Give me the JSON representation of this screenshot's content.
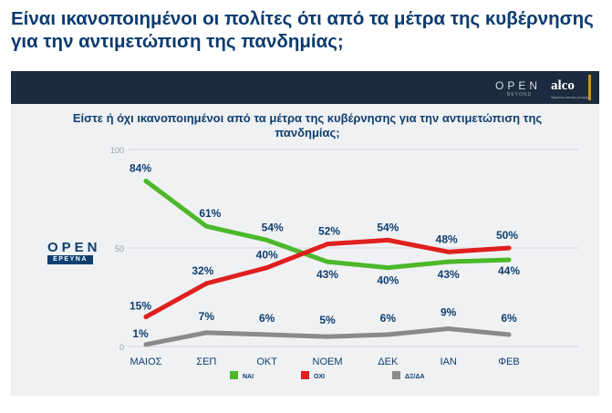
{
  "page": {
    "headline": "Είναι ικανοποιημένοι οι πολίτες ότι από τα μέτρα της κυβέρνησης για την αντιμετώπιση της πανδημίας;"
  },
  "branding": {
    "open_logo": "OPEN",
    "open_sub": "BEYOND",
    "alco_logo": "alco",
    "alco_sub": "Έρευνες κοινής γνώμης",
    "side_logo": "OPEN",
    "side_sub": "ΕΡΕΥΝΑ",
    "colors": {
      "topbar": "#1d2b3e",
      "accent": "#c8941e",
      "brand_blue": "#0e3f70"
    }
  },
  "chart_data": {
    "type": "line",
    "title": "Είστε ή όχι ικανοποιημένοι από τα μέτρα της κυβέρνησης για την αντιμετώπιση της πανδημίας;",
    "categories": [
      "ΜΑΙΟΣ",
      "ΣΕΠ",
      "ΟΚΤ",
      "ΝΟΕΜ",
      "ΔΕΚ",
      "ΙΑΝ",
      "ΦΕΒ"
    ],
    "yticks": [
      0,
      50,
      100
    ],
    "ylim": [
      0,
      100
    ],
    "grid": true,
    "legend_position": "bottom",
    "series": [
      {
        "name": "ΝΑΙ",
        "color": "#4cb82a",
        "values": [
          84,
          61,
          54,
          43,
          40,
          43,
          44
        ],
        "labels": [
          "84%",
          "61%",
          "54%",
          "43%",
          "40%",
          "43%",
          "44%"
        ]
      },
      {
        "name": "ΟΧΙ",
        "color": "#e01f1f",
        "values": [
          15,
          32,
          40,
          52,
          54,
          48,
          50
        ],
        "labels": [
          "15%",
          "32%",
          "40%",
          "52%",
          "54%",
          "48%",
          "50%"
        ]
      },
      {
        "name": "ΔΞ/ΔΑ",
        "color": "#8a8a8a",
        "values": [
          1,
          7,
          6,
          5,
          6,
          9,
          6
        ],
        "labels": [
          "1%",
          "7%",
          "6%",
          "5%",
          "6%",
          "9%",
          "6%"
        ]
      }
    ]
  }
}
